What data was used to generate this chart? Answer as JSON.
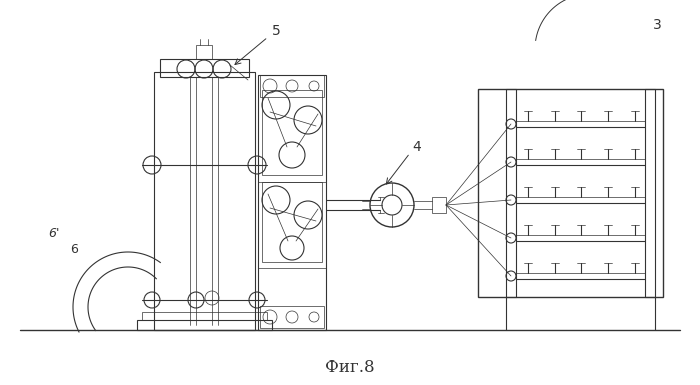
{
  "bg_color": "#ffffff",
  "line_color": "#333333",
  "lw_thin": 0.5,
  "lw_med": 0.8,
  "lw_thick": 1.0,
  "title": "Фиг.8",
  "title_fontsize": 12
}
